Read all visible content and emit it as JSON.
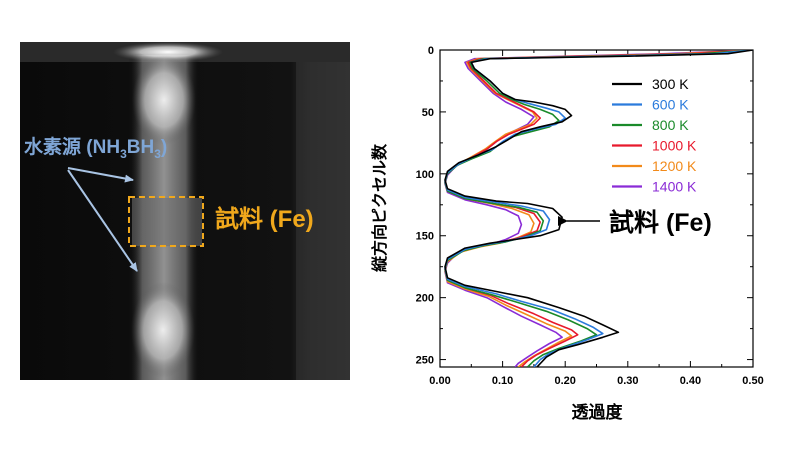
{
  "image_panel": {
    "hydrogen_source_label": "水素源 (NH",
    "hydrogen_sub_1": "3",
    "hydrogen_mid": "BH",
    "hydrogen_sub_2": "3",
    "hydrogen_close": ")",
    "sample_label": "試料 (Fe)",
    "colors": {
      "hydrogen_label": "#7fa6d6",
      "sample_label": "#f0a81c",
      "sample_box": "#f0a81c",
      "arrow": "#a9c4e4"
    }
  },
  "chart_data": {
    "type": "line",
    "orientation": "vertical-position-on-y",
    "xlabel": "透過度",
    "ylabel": "縦方向ピクセル数",
    "xlim": [
      0,
      0.5
    ],
    "ylim": [
      0,
      256
    ],
    "y_inverted": true,
    "x_ticks": [
      "0.00",
      "0.10",
      "0.20",
      "0.30",
      "0.40",
      "0.50"
    ],
    "y_ticks": [
      "0",
      "50",
      "100",
      "150",
      "200",
      "250"
    ],
    "legend_position": "top-right",
    "annotation": "試料 (Fe)",
    "series": [
      {
        "name": "300 K",
        "color": "#000000",
        "points": [
          [
            0.5,
            0
          ],
          [
            0.46,
            3
          ],
          [
            0.3,
            5
          ],
          [
            0.08,
            7
          ],
          [
            0.05,
            10
          ],
          [
            0.055,
            15
          ],
          [
            0.08,
            25
          ],
          [
            0.1,
            35
          ],
          [
            0.12,
            40
          ],
          [
            0.15,
            42
          ],
          [
            0.18,
            45
          ],
          [
            0.2,
            48
          ],
          [
            0.21,
            53
          ],
          [
            0.195,
            58
          ],
          [
            0.16,
            62
          ],
          [
            0.13,
            66
          ],
          [
            0.11,
            72
          ],
          [
            0.09,
            78
          ],
          [
            0.06,
            85
          ],
          [
            0.03,
            91
          ],
          [
            0.012,
            98
          ],
          [
            0.008,
            105
          ],
          [
            0.012,
            112
          ],
          [
            0.04,
            118
          ],
          [
            0.09,
            122
          ],
          [
            0.14,
            124
          ],
          [
            0.18,
            128
          ],
          [
            0.195,
            135
          ],
          [
            0.19,
            145
          ],
          [
            0.16,
            150
          ],
          [
            0.12,
            153
          ],
          [
            0.08,
            156
          ],
          [
            0.04,
            160
          ],
          [
            0.012,
            168
          ],
          [
            0.008,
            175
          ],
          [
            0.012,
            184
          ],
          [
            0.04,
            190
          ],
          [
            0.09,
            195
          ],
          [
            0.14,
            200
          ],
          [
            0.19,
            208
          ],
          [
            0.23,
            215
          ],
          [
            0.26,
            222
          ],
          [
            0.285,
            228
          ],
          [
            0.26,
            232
          ],
          [
            0.22,
            238
          ],
          [
            0.19,
            242
          ],
          [
            0.17,
            248
          ],
          [
            0.155,
            256
          ]
        ]
      },
      {
        "name": "600 K",
        "color": "#2b7bdc",
        "points": [
          [
            0.5,
            0
          ],
          [
            0.44,
            3
          ],
          [
            0.28,
            5
          ],
          [
            0.075,
            7
          ],
          [
            0.05,
            10
          ],
          [
            0.055,
            15
          ],
          [
            0.08,
            25
          ],
          [
            0.1,
            35
          ],
          [
            0.12,
            40
          ],
          [
            0.14,
            43
          ],
          [
            0.17,
            47
          ],
          [
            0.19,
            50
          ],
          [
            0.2,
            55
          ],
          [
            0.185,
            60
          ],
          [
            0.15,
            64
          ],
          [
            0.12,
            68
          ],
          [
            0.1,
            74
          ],
          [
            0.085,
            80
          ],
          [
            0.055,
            86
          ],
          [
            0.03,
            92
          ],
          [
            0.012,
            99
          ],
          [
            0.008,
            106
          ],
          [
            0.012,
            113
          ],
          [
            0.04,
            119
          ],
          [
            0.09,
            123
          ],
          [
            0.13,
            126
          ],
          [
            0.165,
            130
          ],
          [
            0.175,
            137
          ],
          [
            0.17,
            145
          ],
          [
            0.145,
            150
          ],
          [
            0.11,
            154
          ],
          [
            0.075,
            157
          ],
          [
            0.04,
            161
          ],
          [
            0.012,
            169
          ],
          [
            0.008,
            176
          ],
          [
            0.012,
            185
          ],
          [
            0.04,
            191
          ],
          [
            0.09,
            197
          ],
          [
            0.13,
            203
          ],
          [
            0.18,
            210
          ],
          [
            0.215,
            217
          ],
          [
            0.245,
            224
          ],
          [
            0.26,
            229
          ],
          [
            0.235,
            234
          ],
          [
            0.2,
            240
          ],
          [
            0.175,
            245
          ],
          [
            0.16,
            250
          ],
          [
            0.15,
            256
          ]
        ]
      },
      {
        "name": "800 K",
        "color": "#1a8a2a",
        "points": [
          [
            0.5,
            0
          ],
          [
            0.42,
            3
          ],
          [
            0.26,
            5
          ],
          [
            0.07,
            7
          ],
          [
            0.048,
            10
          ],
          [
            0.052,
            15
          ],
          [
            0.075,
            25
          ],
          [
            0.095,
            35
          ],
          [
            0.115,
            40
          ],
          [
            0.135,
            44
          ],
          [
            0.16,
            48
          ],
          [
            0.18,
            52
          ],
          [
            0.19,
            57
          ],
          [
            0.175,
            62
          ],
          [
            0.145,
            66
          ],
          [
            0.115,
            70
          ],
          [
            0.095,
            76
          ],
          [
            0.08,
            82
          ],
          [
            0.05,
            88
          ],
          [
            0.028,
            93
          ],
          [
            0.012,
            100
          ],
          [
            0.008,
            107
          ],
          [
            0.012,
            114
          ],
          [
            0.04,
            120
          ],
          [
            0.085,
            124
          ],
          [
            0.125,
            127
          ],
          [
            0.155,
            131
          ],
          [
            0.165,
            138
          ],
          [
            0.16,
            146
          ],
          [
            0.135,
            151
          ],
          [
            0.105,
            155
          ],
          [
            0.07,
            158
          ],
          [
            0.038,
            162
          ],
          [
            0.012,
            170
          ],
          [
            0.008,
            177
          ],
          [
            0.012,
            186
          ],
          [
            0.04,
            192
          ],
          [
            0.085,
            198
          ],
          [
            0.125,
            204
          ],
          [
            0.17,
            211
          ],
          [
            0.205,
            218
          ],
          [
            0.235,
            225
          ],
          [
            0.25,
            230
          ],
          [
            0.225,
            235
          ],
          [
            0.19,
            241
          ],
          [
            0.165,
            246
          ],
          [
            0.15,
            251
          ],
          [
            0.14,
            256
          ]
        ]
      },
      {
        "name": "1000 K",
        "color": "#e8192c",
        "points": [
          [
            0.5,
            0
          ],
          [
            0.4,
            3
          ],
          [
            0.24,
            5
          ],
          [
            0.065,
            7
          ],
          [
            0.045,
            10
          ],
          [
            0.05,
            15
          ],
          [
            0.07,
            25
          ],
          [
            0.09,
            35
          ],
          [
            0.11,
            40
          ],
          [
            0.13,
            45
          ],
          [
            0.15,
            50
          ],
          [
            0.16,
            55
          ],
          [
            0.15,
            60
          ],
          [
            0.13,
            64
          ],
          [
            0.11,
            68
          ],
          [
            0.09,
            74
          ],
          [
            0.075,
            80
          ],
          [
            0.05,
            87
          ],
          [
            0.027,
            93
          ],
          [
            0.012,
            100
          ],
          [
            0.008,
            107
          ],
          [
            0.012,
            114
          ],
          [
            0.04,
            120
          ],
          [
            0.085,
            124
          ],
          [
            0.12,
            127
          ],
          [
            0.15,
            132
          ],
          [
            0.16,
            139
          ],
          [
            0.155,
            146
          ],
          [
            0.13,
            151
          ],
          [
            0.1,
            155
          ],
          [
            0.068,
            158
          ],
          [
            0.036,
            162
          ],
          [
            0.012,
            170
          ],
          [
            0.008,
            177
          ],
          [
            0.012,
            186
          ],
          [
            0.04,
            192
          ],
          [
            0.08,
            198
          ],
          [
            0.11,
            205
          ],
          [
            0.15,
            213
          ],
          [
            0.18,
            220
          ],
          [
            0.21,
            226
          ],
          [
            0.22,
            230
          ],
          [
            0.2,
            235
          ],
          [
            0.175,
            241
          ],
          [
            0.155,
            246
          ],
          [
            0.14,
            251
          ],
          [
            0.13,
            256
          ]
        ]
      },
      {
        "name": "1200 K",
        "color": "#f28a1a",
        "points": [
          [
            0.5,
            0
          ],
          [
            0.38,
            3
          ],
          [
            0.22,
            5
          ],
          [
            0.06,
            7
          ],
          [
            0.043,
            10
          ],
          [
            0.048,
            15
          ],
          [
            0.068,
            25
          ],
          [
            0.088,
            35
          ],
          [
            0.108,
            40
          ],
          [
            0.128,
            45
          ],
          [
            0.148,
            50
          ],
          [
            0.155,
            55
          ],
          [
            0.145,
            60
          ],
          [
            0.125,
            64
          ],
          [
            0.105,
            68
          ],
          [
            0.088,
            74
          ],
          [
            0.072,
            80
          ],
          [
            0.048,
            87
          ],
          [
            0.026,
            93
          ],
          [
            0.012,
            100
          ],
          [
            0.008,
            107
          ],
          [
            0.012,
            114
          ],
          [
            0.04,
            120
          ],
          [
            0.08,
            124
          ],
          [
            0.115,
            128
          ],
          [
            0.142,
            133
          ],
          [
            0.15,
            140
          ],
          [
            0.145,
            147
          ],
          [
            0.122,
            152
          ],
          [
            0.095,
            156
          ],
          [
            0.064,
            159
          ],
          [
            0.034,
            163
          ],
          [
            0.012,
            171
          ],
          [
            0.008,
            178
          ],
          [
            0.012,
            187
          ],
          [
            0.04,
            193
          ],
          [
            0.078,
            199
          ],
          [
            0.105,
            206
          ],
          [
            0.14,
            214
          ],
          [
            0.17,
            221
          ],
          [
            0.2,
            227
          ],
          [
            0.21,
            231
          ],
          [
            0.19,
            236
          ],
          [
            0.168,
            242
          ],
          [
            0.15,
            247
          ],
          [
            0.135,
            252
          ],
          [
            0.125,
            256
          ]
        ]
      },
      {
        "name": "1400 K",
        "color": "#8a2bd6",
        "points": [
          [
            0.5,
            0
          ],
          [
            0.36,
            3
          ],
          [
            0.2,
            5
          ],
          [
            0.055,
            7
          ],
          [
            0.04,
            10
          ],
          [
            0.045,
            15
          ],
          [
            0.065,
            25
          ],
          [
            0.085,
            35
          ],
          [
            0.105,
            42
          ],
          [
            0.13,
            48
          ],
          [
            0.15,
            54
          ],
          [
            0.14,
            60
          ],
          [
            0.12,
            65
          ],
          [
            0.1,
            70
          ],
          [
            0.085,
            76
          ],
          [
            0.07,
            82
          ],
          [
            0.045,
            88
          ],
          [
            0.025,
            94
          ],
          [
            0.012,
            101
          ],
          [
            0.008,
            108
          ],
          [
            0.012,
            115
          ],
          [
            0.04,
            121
          ],
          [
            0.075,
            125
          ],
          [
            0.105,
            129
          ],
          [
            0.125,
            134
          ],
          [
            0.13,
            141
          ],
          [
            0.125,
            148
          ],
          [
            0.105,
            153
          ],
          [
            0.08,
            157
          ],
          [
            0.052,
            160
          ],
          [
            0.028,
            164
          ],
          [
            0.012,
            172
          ],
          [
            0.008,
            179
          ],
          [
            0.012,
            188
          ],
          [
            0.04,
            194
          ],
          [
            0.075,
            200
          ],
          [
            0.1,
            207
          ],
          [
            0.13,
            215
          ],
          [
            0.16,
            222
          ],
          [
            0.185,
            228
          ],
          [
            0.195,
            232
          ],
          [
            0.175,
            237
          ],
          [
            0.155,
            243
          ],
          [
            0.14,
            248
          ],
          [
            0.125,
            253
          ],
          [
            0.12,
            256
          ]
        ]
      }
    ]
  }
}
